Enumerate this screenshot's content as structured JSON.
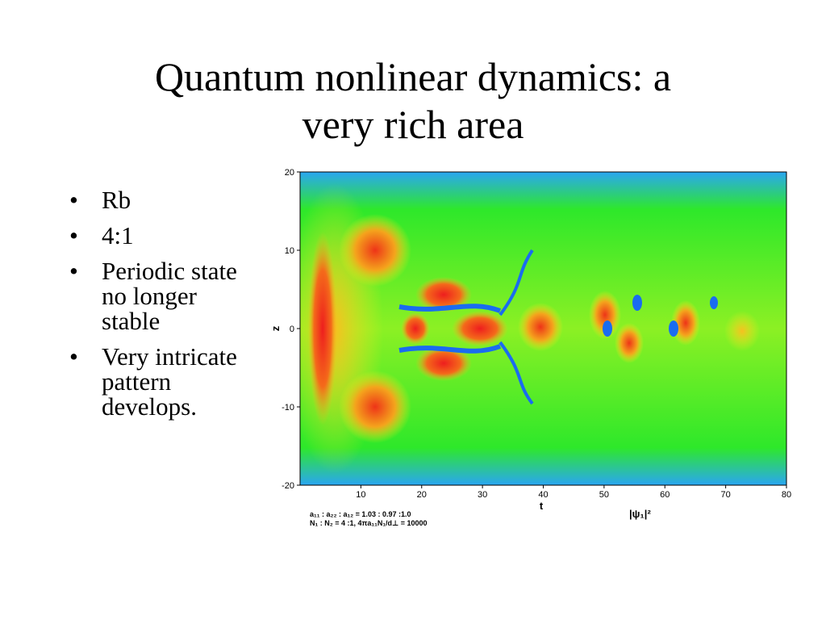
{
  "slide": {
    "title_lines": [
      "Quantum nonlinear dynamics: a",
      "very rich area"
    ],
    "bullets": [
      "Rb",
      "4:1",
      "Periodic state no longer stable",
      "Very intricate pattern develops."
    ]
  },
  "colors": {
    "low": "#1a6cf0",
    "mid": "#2ee82a",
    "yellowish": "#f2ee1c",
    "high": "#ee1e1e"
  },
  "chart_data": {
    "type": "heatmap",
    "title": "",
    "xlabel": "t",
    "ylabel": "z",
    "colorbar_label": "|ψ₁|²",
    "xlim": [
      0,
      80
    ],
    "ylim": [
      -20,
      20
    ],
    "xticks": [
      10,
      20,
      30,
      40,
      50,
      60,
      70,
      80
    ],
    "yticks": [
      20,
      10,
      0,
      -10,
      -20
    ],
    "grid": false,
    "params_lines": [
      "a₁₁ : a₂₂ : a₁₂ = 1.03 : 0.97 :1.0",
      "N₁ : N₂ = 4 :1,  4πa₁₁N₁/d⊥ = 10000"
    ]
  }
}
